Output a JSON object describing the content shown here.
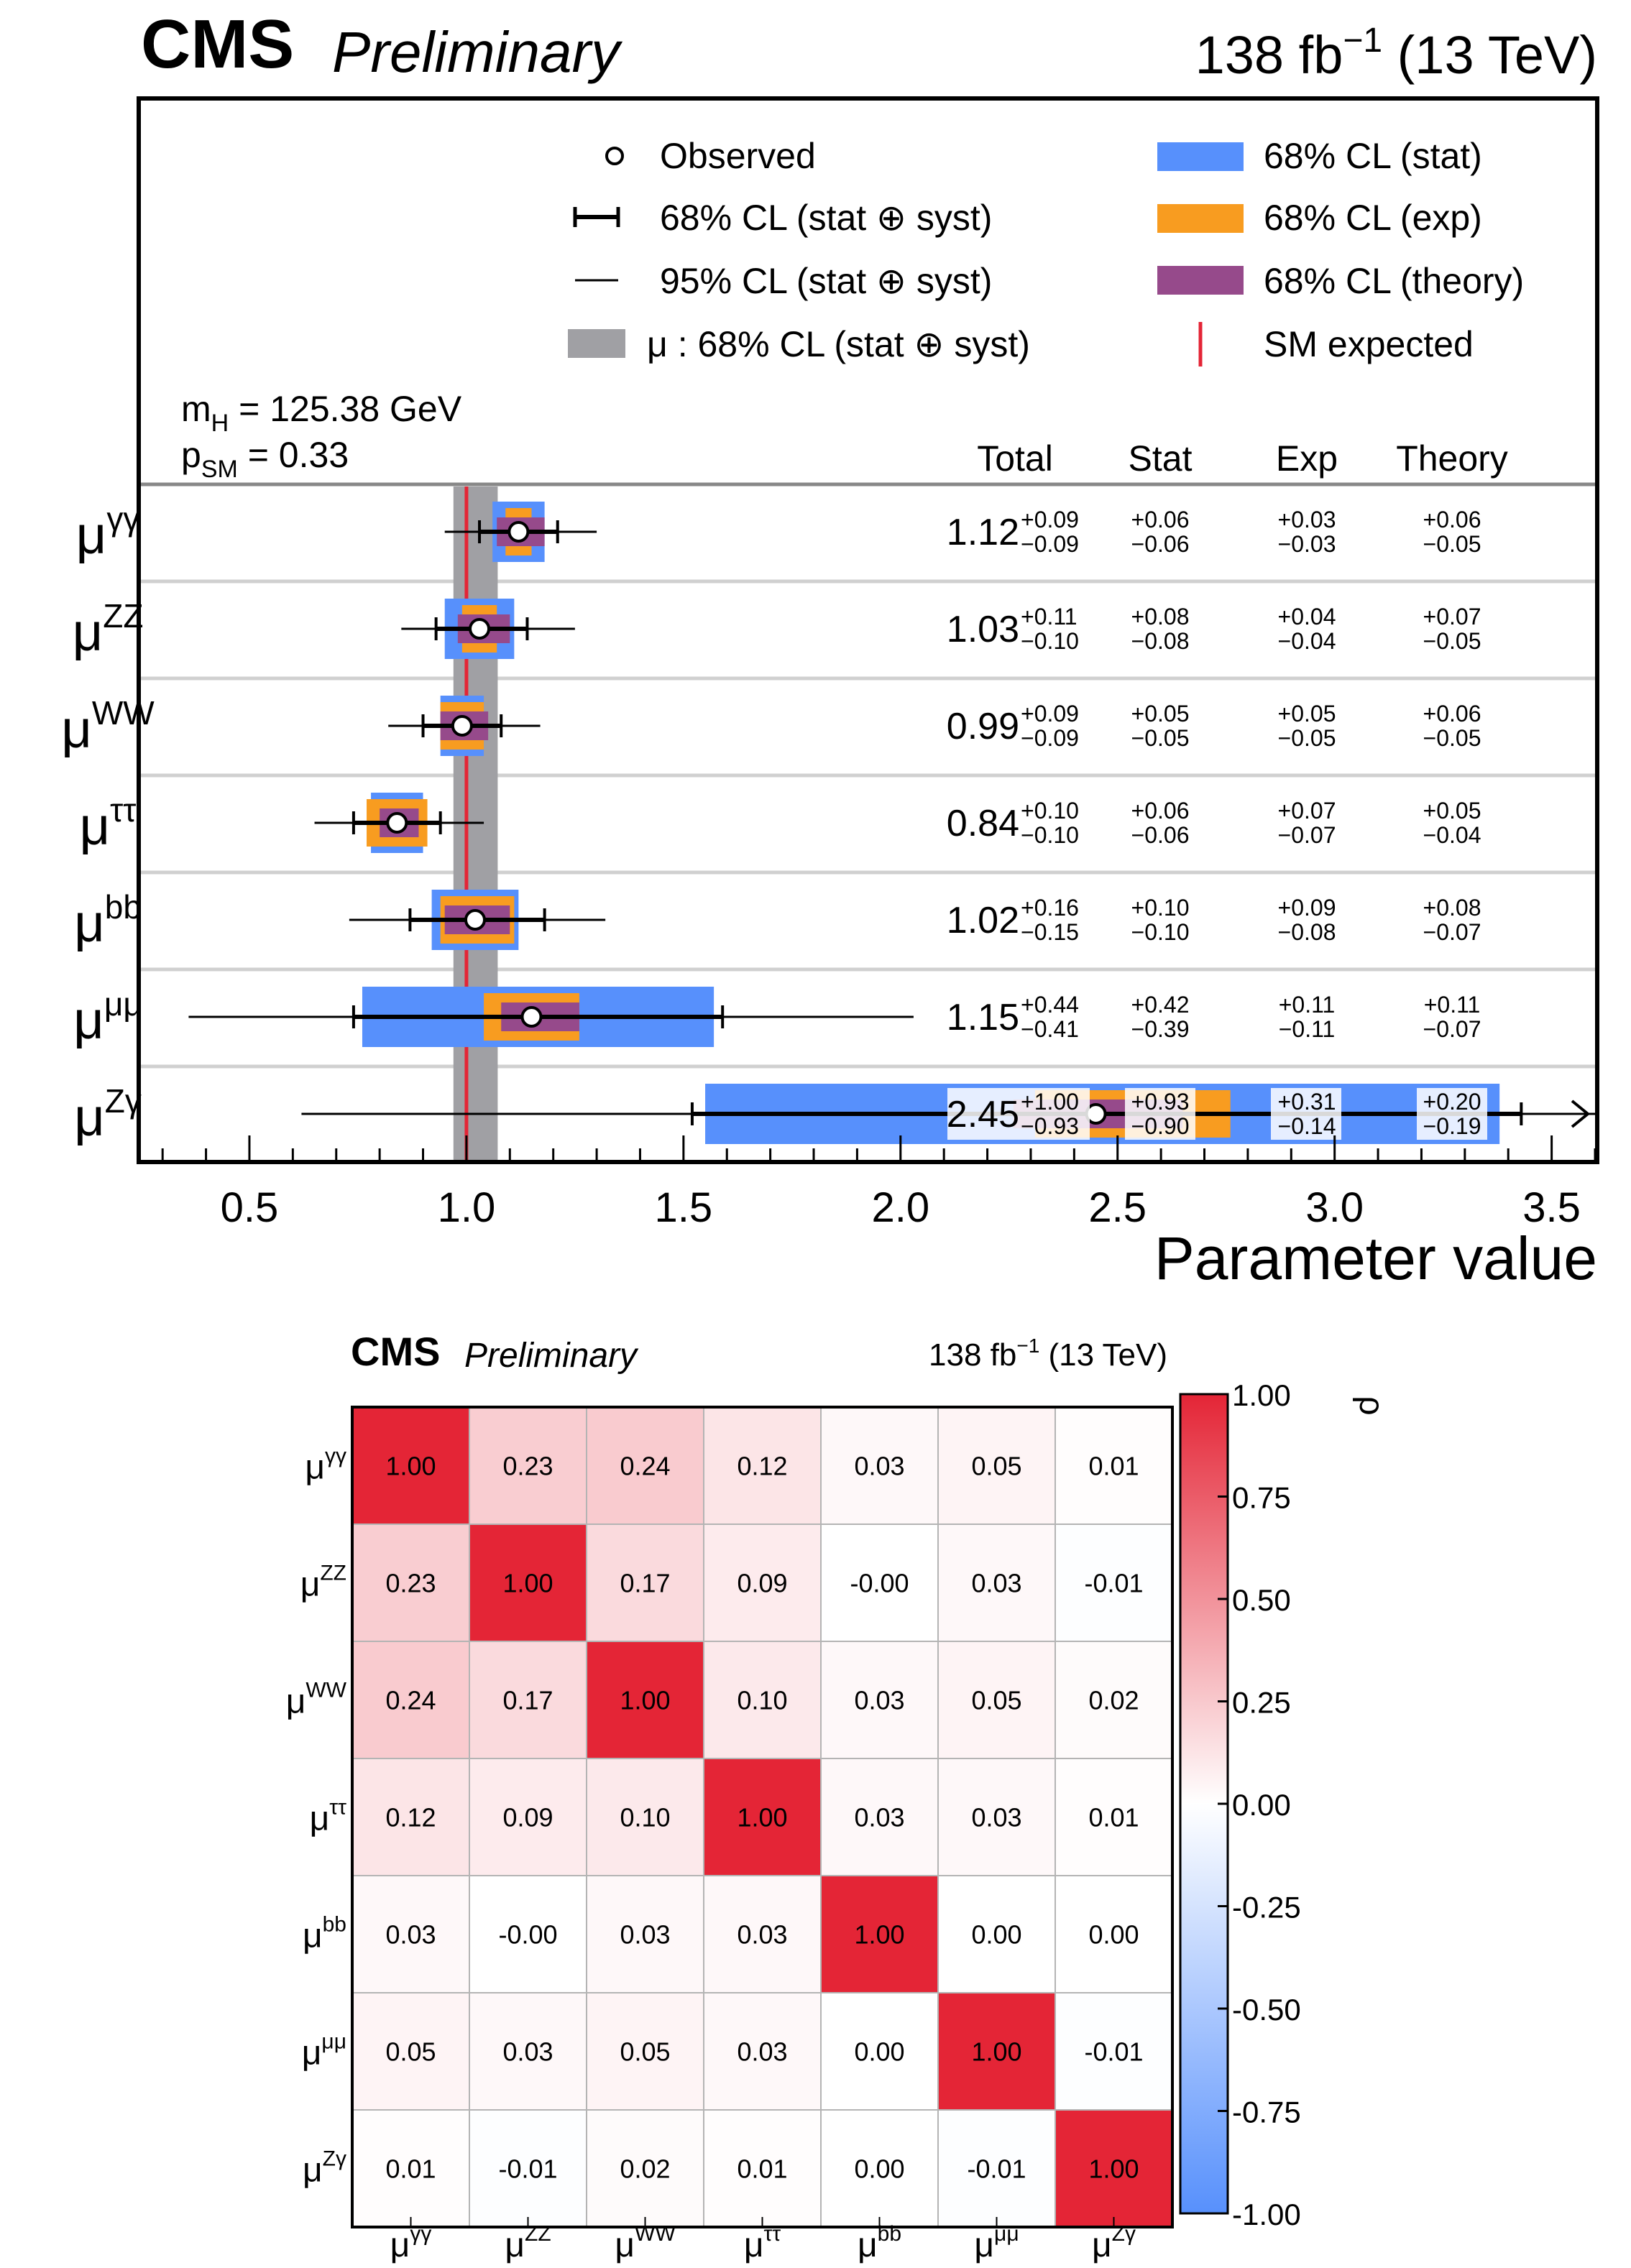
{
  "top": {
    "cms_label": "CMS",
    "preliminary_label": "Preliminary",
    "lumi_prefix": "138 fb",
    "lumi_sup": "−1",
    "lumi_suffix": "(13 TeV)",
    "mh_label": "m",
    "mh_sub": "H",
    "mh_value": "= 125.38 GeV",
    "psm_label": "p",
    "psm_sub": "SM",
    "psm_value": "= 0.33",
    "legend": {
      "observed": "Observed",
      "cl68_total": "68% CL (stat ⊕ syst)",
      "cl95_total": "95% CL (stat ⊕ syst)",
      "mu_band": "μ : 68% CL (stat ⊕ syst)",
      "cl68_stat": "68% CL (stat)",
      "cl68_exp": "68% CL (exp)",
      "cl68_theory": "68% CL (theory)",
      "sm_expected": "SM expected"
    },
    "columns": {
      "total": "Total",
      "stat": "Stat",
      "exp": "Exp",
      "theory": "Theory"
    },
    "xlabel": "Parameter value",
    "colors": {
      "stat": "#5790fc",
      "exp": "#f89c20",
      "theory": "#964a8b",
      "band": "#a0a0a4",
      "sm": "#e42536"
    }
  },
  "chart_data": [
    {
      "type": "errorbar",
      "title": "",
      "xlabel": "Parameter value",
      "xlim": [
        0.25,
        3.6
      ],
      "xticks": [
        "0.5",
        "1.0",
        "1.5",
        "2.0",
        "2.5",
        "3.0",
        "3.5"
      ],
      "sm_expected": 1.0,
      "mu_overall": 1.014,
      "mu_band": [
        0.97,
        1.072
      ],
      "rows": [
        {
          "label": "γγ",
          "value": 1.12,
          "value_text": "1.12",
          "total_up": "+0.09",
          "total_dn": "−0.09",
          "stat_up": "+0.06",
          "stat_dn": "−0.06",
          "exp_up": "+0.03",
          "exp_dn": "−0.03",
          "th_up": "+0.06",
          "th_dn": "−0.05",
          "t68": [
            1.03,
            1.21
          ],
          "t95": [
            0.95,
            1.3
          ],
          "stat": [
            1.06,
            1.18
          ],
          "exp": [
            1.09,
            1.15
          ],
          "theory": [
            1.07,
            1.18
          ]
        },
        {
          "label": "ZZ",
          "value": 1.03,
          "value_text": "1.03",
          "total_up": "+0.11",
          "total_dn": "−0.10",
          "stat_up": "+0.08",
          "stat_dn": "−0.08",
          "exp_up": "+0.04",
          "exp_dn": "−0.04",
          "th_up": "+0.07",
          "th_dn": "−0.05",
          "t68": [
            0.93,
            1.14
          ],
          "t95": [
            0.85,
            1.25
          ],
          "stat": [
            0.95,
            1.11
          ],
          "exp": [
            0.99,
            1.07
          ],
          "theory": [
            0.98,
            1.1
          ]
        },
        {
          "label": "WW",
          "value": 0.99,
          "value_text": "0.99",
          "total_up": "+0.09",
          "total_dn": "−0.09",
          "stat_up": "+0.05",
          "stat_dn": "−0.05",
          "exp_up": "+0.05",
          "exp_dn": "−0.05",
          "th_up": "+0.06",
          "th_dn": "−0.05",
          "t68": [
            0.9,
            1.08
          ],
          "t95": [
            0.82,
            1.17
          ],
          "stat": [
            0.94,
            1.04
          ],
          "exp": [
            0.94,
            1.04
          ],
          "theory": [
            0.94,
            1.05
          ]
        },
        {
          "label": "ττ",
          "value": 0.84,
          "value_text": "0.84",
          "total_up": "+0.10",
          "total_dn": "−0.10",
          "stat_up": "+0.06",
          "stat_dn": "−0.06",
          "exp_up": "+0.07",
          "exp_dn": "−0.07",
          "th_up": "+0.05",
          "th_dn": "−0.04",
          "t68": [
            0.74,
            0.94
          ],
          "t95": [
            0.65,
            1.04
          ],
          "stat": [
            0.78,
            0.9
          ],
          "exp": [
            0.77,
            0.91
          ],
          "theory": [
            0.8,
            0.89
          ]
        },
        {
          "label": "bb",
          "value": 1.02,
          "value_text": "1.02",
          "total_up": "+0.16",
          "total_dn": "−0.15",
          "stat_up": "+0.10",
          "stat_dn": "−0.10",
          "exp_up": "+0.09",
          "exp_dn": "−0.08",
          "th_up": "+0.08",
          "th_dn": "−0.07",
          "t68": [
            0.87,
            1.18
          ],
          "t95": [
            0.73,
            1.32
          ],
          "stat": [
            0.92,
            1.12
          ],
          "exp": [
            0.94,
            1.11
          ],
          "theory": [
            0.95,
            1.1
          ]
        },
        {
          "label": "μμ",
          "value": 1.15,
          "value_text": "1.15",
          "total_up": "+0.44",
          "total_dn": "−0.41",
          "stat_up": "+0.42",
          "stat_dn": "−0.39",
          "exp_up": "+0.11",
          "exp_dn": "−0.11",
          "th_up": "+0.11",
          "th_dn": "−0.07",
          "t68": [
            0.74,
            1.59
          ],
          "t95": [
            0.36,
            2.03
          ],
          "stat": [
            0.76,
            1.57
          ],
          "exp": [
            1.04,
            1.26
          ],
          "theory": [
            1.08,
            1.26
          ]
        },
        {
          "label": "Zγ",
          "value": 2.45,
          "value_text": "2.45",
          "total_up": "+1.00",
          "total_dn": "−0.93",
          "stat_up": "+0.93",
          "stat_dn": "−0.90",
          "exp_up": "+0.31",
          "exp_dn": "−0.14",
          "th_up": "+0.20",
          "th_dn": "−0.19",
          "t68": [
            1.52,
            3.43
          ],
          "t95": [
            0.62,
            3.6
          ],
          "stat": [
            1.55,
            3.38
          ],
          "exp": [
            2.31,
            2.76
          ],
          "theory": [
            2.26,
            2.65
          ]
        }
      ]
    },
    {
      "type": "heatmap",
      "title": "CMS Preliminary",
      "lumi": "138 fb−1 (13 TeV)",
      "colorbar_label": "ρ",
      "colorbar_range": [
        -1.0,
        1.0
      ],
      "colorbar_ticks": [
        "1.00",
        "0.75",
        "0.50",
        "0.25",
        "0.00",
        "-0.25",
        "-0.50",
        "-0.75",
        "-1.00"
      ],
      "labels": [
        "γγ",
        "ZZ",
        "WW",
        "ττ",
        "bb",
        "μμ",
        "Zγ"
      ],
      "values": [
        [
          1.0,
          0.23,
          0.24,
          0.12,
          0.03,
          0.05,
          0.01
        ],
        [
          0.23,
          1.0,
          0.17,
          0.09,
          -0.0,
          0.03,
          -0.01
        ],
        [
          0.24,
          0.17,
          1.0,
          0.1,
          0.03,
          0.05,
          0.02
        ],
        [
          0.12,
          0.09,
          0.1,
          1.0,
          0.03,
          0.03,
          0.01
        ],
        [
          0.03,
          -0.0,
          0.03,
          0.03,
          1.0,
          0.0,
          0.0
        ],
        [
          0.05,
          0.03,
          0.05,
          0.03,
          0.0,
          1.0,
          -0.01
        ],
        [
          0.01,
          -0.01,
          0.02,
          0.01,
          0.0,
          -0.01,
          1.0
        ]
      ],
      "text": [
        [
          "1.00",
          "0.23",
          "0.24",
          "0.12",
          "0.03",
          "0.05",
          "0.01"
        ],
        [
          "0.23",
          "1.00",
          "0.17",
          "0.09",
          "-0.00",
          "0.03",
          "-0.01"
        ],
        [
          "0.24",
          "0.17",
          "1.00",
          "0.10",
          "0.03",
          "0.05",
          "0.02"
        ],
        [
          "0.12",
          "0.09",
          "0.10",
          "1.00",
          "0.03",
          "0.03",
          "0.01"
        ],
        [
          "0.03",
          "-0.00",
          "0.03",
          "0.03",
          "1.00",
          "0.00",
          "0.00"
        ],
        [
          "0.05",
          "0.03",
          "0.05",
          "0.03",
          "0.00",
          "1.00",
          "-0.01"
        ],
        [
          "0.01",
          "-0.01",
          "0.02",
          "0.01",
          "0.00",
          "-0.01",
          "1.00"
        ]
      ]
    }
  ]
}
